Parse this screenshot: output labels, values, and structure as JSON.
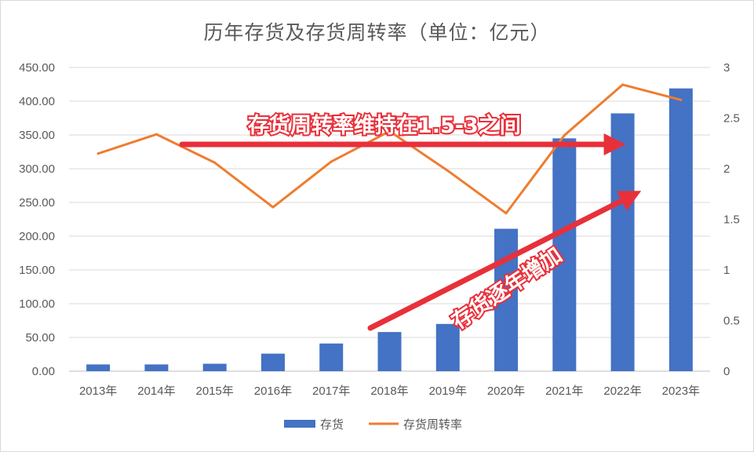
{
  "chart_data": {
    "type": "bar+line",
    "title": "历年存货及存货周转率（单位：亿元）",
    "categories": [
      "2013年",
      "2014年",
      "2015年",
      "2016年",
      "2017年",
      "2018年",
      "2019年",
      "2020年",
      "2021年",
      "2022年",
      "2023年"
    ],
    "series": [
      {
        "name": "存货",
        "type": "bar",
        "axis": "left",
        "color": "#4472c4",
        "values": [
          10,
          10,
          11,
          26,
          41,
          58,
          70,
          211,
          345,
          382,
          419
        ]
      },
      {
        "name": "存货周转率",
        "type": "line",
        "axis": "right",
        "color": "#ed7d31",
        "values": [
          2.15,
          2.34,
          2.06,
          1.62,
          2.07,
          2.37,
          1.98,
          1.56,
          2.33,
          2.83,
          2.68
        ]
      }
    ],
    "y_left": {
      "min": 0,
      "max": 450,
      "ticks": [
        "0.00",
        "50.00",
        "100.00",
        "150.00",
        "200.00",
        "250.00",
        "300.00",
        "350.00",
        "400.00",
        "450.00"
      ]
    },
    "y_right": {
      "min": 0,
      "max": 3,
      "ticks": [
        "0",
        "0.5",
        "1",
        "1.5",
        "2",
        "2.5",
        "3"
      ]
    },
    "grid": true,
    "legend_position": "bottom",
    "annotations": [
      {
        "text": "存货周转率维持在1.5-3之间",
        "color": "#e8303a"
      },
      {
        "text": "存货逐年增加",
        "color": "#e8303a"
      }
    ]
  }
}
